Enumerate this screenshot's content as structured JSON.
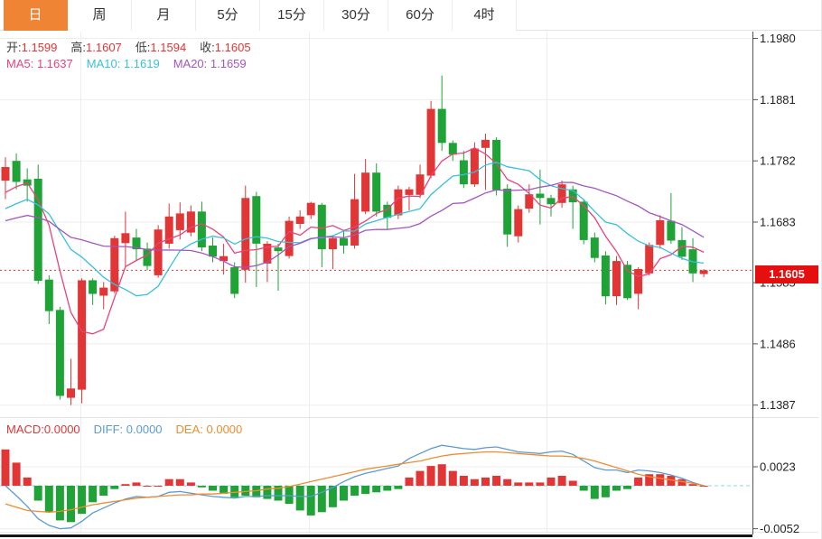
{
  "colors": {
    "up": "#e23535",
    "down": "#1fa337",
    "accent": "#ee8434",
    "ma5": "#e8437a",
    "ma10": "#38c0dc",
    "ma20": "#a455c0",
    "diff": "#5b9bd5",
    "dea": "#f08c2e",
    "price_tag_bg": "#e60f0f",
    "dotted_line": "#e23535",
    "zero_line": "#8fd6e8",
    "label_dark": "#3c3c3c",
    "value_red": "#e23535",
    "axis": "#555555",
    "grid": "#ededed"
  },
  "toolbar": {
    "tabs": [
      {
        "id": "day",
        "label": "日",
        "active": true
      },
      {
        "id": "week",
        "label": "周",
        "active": false
      },
      {
        "id": "month",
        "label": "月",
        "active": false
      },
      {
        "id": "5min",
        "label": "5分",
        "active": false
      },
      {
        "id": "15min",
        "label": "15分",
        "active": false
      },
      {
        "id": "30min",
        "label": "30分",
        "active": false
      },
      {
        "id": "60min",
        "label": "60分",
        "active": false
      },
      {
        "id": "4hour",
        "label": "4时",
        "active": false
      }
    ]
  },
  "main_legend": {
    "ohlc": [
      {
        "label": "开:",
        "value": "1.1599"
      },
      {
        "label": "高:",
        "value": "1.1607"
      },
      {
        "label": "低:",
        "value": "1.1594"
      },
      {
        "label": "收:",
        "value": "1.1605"
      }
    ],
    "ma": [
      {
        "label": "MA5: ",
        "value": "1.1637",
        "color": "#e8437a"
      },
      {
        "label": "MA10: ",
        "value": "1.1619",
        "color": "#38c0dc"
      },
      {
        "label": "MA20: ",
        "value": "1.1659",
        "color": "#a455c0"
      }
    ]
  },
  "macd_legend": {
    "items": [
      {
        "label": "MACD:",
        "value": "0.0000",
        "color": "#e23535"
      },
      {
        "label": "DIFF: ",
        "value": "0.0000",
        "color": "#5b9bd5"
      },
      {
        "label": "DEA: ",
        "value": "0.0000",
        "color": "#f08c2e"
      }
    ]
  },
  "price_axis": {
    "tick_labels": [
      "1.1980",
      "1.1881",
      "1.1782",
      "1.1683",
      "1.1585",
      "1.1486",
      "1.1387"
    ],
    "current_price": "1.1605"
  },
  "macd_axis": {
    "tick_labels": [
      "0.0023",
      "-0.0052"
    ]
  },
  "chart_data": [
    {
      "type": "candlestick",
      "period": "日",
      "ylim": [
        1.1377,
        1.1991
      ],
      "y_ticks": [
        1.198,
        1.1881,
        1.1782,
        1.1683,
        1.1585,
        1.1486,
        1.1387
      ],
      "current_price": 1.1605,
      "legend_values": {
        "ma5": "1.1637",
        "ma10": "1.1619",
        "ma20": "1.1659"
      },
      "ma_periods": [
        5,
        10,
        20
      ],
      "history_closes": [
        1.165,
        1.1655,
        1.166,
        1.1658,
        1.1662,
        1.1665,
        1.1668,
        1.167,
        1.1672,
        1.1675,
        1.167,
        1.1668,
        1.1672,
        1.1678,
        1.1685,
        1.169,
        1.17,
        1.1712,
        1.1725,
        1.1745
      ],
      "candles": [
        [
          1.175,
          1.1788,
          1.172,
          1.1772
        ],
        [
          1.1782,
          1.1794,
          1.1736,
          1.1748
        ],
        [
          1.1752,
          1.177,
          1.1716,
          1.1742
        ],
        [
          1.1753,
          1.1776,
          1.1583,
          1.1588
        ],
        [
          1.159,
          1.1597,
          1.1518,
          1.1539
        ],
        [
          1.1541,
          1.1546,
          1.1396,
          1.1402
        ],
        [
          1.1399,
          1.1462,
          1.1387,
          1.1414
        ],
        [
          1.1412,
          1.1592,
          1.139,
          1.1589
        ],
        [
          1.1589,
          1.1592,
          1.1549,
          1.1567
        ],
        [
          1.1564,
          1.1586,
          1.1542,
          1.1577
        ],
        [
          1.1571,
          1.1661,
          1.1568,
          1.1657
        ],
        [
          1.1649,
          1.17,
          1.161,
          1.1665
        ],
        [
          1.1658,
          1.1672,
          1.162,
          1.1639
        ],
        [
          1.164,
          1.165,
          1.1605,
          1.1612
        ],
        [
          1.1597,
          1.1678,
          1.1593,
          1.1671
        ],
        [
          1.1648,
          1.1713,
          1.164,
          1.1692
        ],
        [
          1.167,
          1.1715,
          1.1655,
          1.1697
        ],
        [
          1.1666,
          1.171,
          1.166,
          1.17
        ],
        [
          1.17,
          1.1716,
          1.1636,
          1.1642
        ],
        [
          1.1645,
          1.1658,
          1.1618,
          1.1627
        ],
        [
          1.162,
          1.1648,
          1.1598,
          1.1628
        ],
        [
          1.161,
          1.1618,
          1.156,
          1.1567
        ],
        [
          1.1606,
          1.1742,
          1.1585,
          1.1722
        ],
        [
          1.1725,
          1.1732,
          1.1578,
          1.1648
        ],
        [
          1.1616,
          1.1652,
          1.1586,
          1.1648
        ],
        [
          1.1642,
          1.1648,
          1.1572,
          1.1636
        ],
        [
          1.1628,
          1.1692,
          1.1624,
          1.1685
        ],
        [
          1.168,
          1.1702,
          1.1672,
          1.1692
        ],
        [
          1.1694,
          1.1716,
          1.1688,
          1.1714
        ],
        [
          1.1711,
          1.1714,
          1.161,
          1.1639
        ],
        [
          1.1639,
          1.1662,
          1.1607,
          1.1657
        ],
        [
          1.1657,
          1.167,
          1.1632,
          1.1645
        ],
        [
          1.1645,
          1.1761,
          1.164,
          1.172
        ],
        [
          1.17,
          1.1785,
          1.1696,
          1.1763
        ],
        [
          1.1763,
          1.1778,
          1.1692,
          1.17
        ],
        [
          1.1711,
          1.1716,
          1.1672,
          1.169
        ],
        [
          1.1694,
          1.1742,
          1.1688,
          1.1736
        ],
        [
          1.1727,
          1.174,
          1.1702,
          1.1736
        ],
        [
          1.1727,
          1.1776,
          1.1722,
          1.176
        ],
        [
          1.1758,
          1.1879,
          1.1754,
          1.1866
        ],
        [
          1.1866,
          1.192,
          1.1798,
          1.1811
        ],
        [
          1.1811,
          1.1815,
          1.1782,
          1.1792
        ],
        [
          1.1783,
          1.1798,
          1.1738,
          1.1744
        ],
        [
          1.1744,
          1.1812,
          1.174,
          1.1802
        ],
        [
          1.1803,
          1.1826,
          1.1735,
          1.1816
        ],
        [
          1.1816,
          1.182,
          1.1726,
          1.1735
        ],
        [
          1.1737,
          1.1744,
          1.1643,
          1.1663
        ],
        [
          1.166,
          1.171,
          1.165,
          1.1704
        ],
        [
          1.1705,
          1.1744,
          1.1698,
          1.1728
        ],
        [
          1.1729,
          1.1768,
          1.1679,
          1.1722
        ],
        [
          1.1722,
          1.1727,
          1.1692,
          1.1712
        ],
        [
          1.1714,
          1.175,
          1.1706,
          1.1744
        ],
        [
          1.1736,
          1.1742,
          1.1672,
          1.1715
        ],
        [
          1.1716,
          1.172,
          1.1647,
          1.1654
        ],
        [
          1.1658,
          1.1666,
          1.1618,
          1.1625
        ],
        [
          1.1629,
          1.1636,
          1.155,
          1.1563
        ],
        [
          1.1563,
          1.1628,
          1.1549,
          1.162
        ],
        [
          1.1614,
          1.162,
          1.1557,
          1.156
        ],
        [
          1.1567,
          1.161,
          1.1542,
          1.1607
        ],
        [
          1.16,
          1.165,
          1.1597,
          1.1646
        ],
        [
          1.1646,
          1.1694,
          1.164,
          1.1686
        ],
        [
          1.1685,
          1.173,
          1.1648,
          1.1653
        ],
        [
          1.1654,
          1.1675,
          1.1622,
          1.1627
        ],
        [
          1.1639,
          1.1657,
          1.1586,
          1.16
        ],
        [
          1.1599,
          1.1607,
          1.1594,
          1.1605
        ]
      ]
    },
    {
      "type": "bar",
      "name": "MACD",
      "ylim": [
        -0.0059,
        0.0082
      ],
      "y_ticks": [
        0.0023,
        -0.0052
      ],
      "histogram_rule": "2*(diff-dea)",
      "last_values": {
        "macd": "0.0000",
        "diff": "0.0000",
        "dea": "0.0000"
      },
      "diff": [
        0.0,
        -0.0012,
        -0.0025,
        -0.004,
        -0.0048,
        -0.0052,
        -0.0051,
        -0.0043,
        -0.0033,
        -0.0027,
        -0.0021,
        -0.0016,
        -0.0013,
        -0.0014,
        -0.0013,
        -0.0008,
        -0.0007,
        -0.0009,
        -0.0011,
        -0.0013,
        -0.0014,
        -0.0015,
        -0.0013,
        -0.0013,
        -0.0012,
        -0.0012,
        -0.0012,
        -0.0013,
        -0.0013,
        -0.0008,
        -0.0002,
        0.0005,
        0.0011,
        0.0015,
        0.0018,
        0.0021,
        0.0024,
        0.0033,
        0.0039,
        0.0045,
        0.0049,
        0.0047,
        0.0045,
        0.0044,
        0.0046,
        0.0047,
        0.0044,
        0.0041,
        0.004,
        0.0039,
        0.0041,
        0.0042,
        0.0038,
        0.003,
        0.0022,
        0.0019,
        0.0019,
        0.0016,
        0.0019,
        0.0018,
        0.0016,
        0.0013,
        0.0009,
        0.0004,
        0.0
      ],
      "dea": [
        -0.0022,
        -0.0026,
        -0.003,
        -0.0031,
        -0.0032,
        -0.0031,
        -0.0029,
        -0.0026,
        -0.0023,
        -0.0021,
        -0.0019,
        -0.0017,
        -0.0015,
        -0.0014,
        -0.0013,
        -0.0012,
        -0.0011,
        -0.0011,
        -0.001,
        -0.001,
        -0.0009,
        -0.0008,
        -0.0007,
        -0.0006,
        -0.0004,
        -0.0003,
        -0.0001,
        0.0002,
        0.0005,
        0.0008,
        0.0011,
        0.0014,
        0.0017,
        0.002,
        0.0022,
        0.0024,
        0.0026,
        0.0028,
        0.003,
        0.0033,
        0.0036,
        0.0038,
        0.0039,
        0.004,
        0.0041,
        0.0041,
        0.004,
        0.0039,
        0.0038,
        0.0037,
        0.0036,
        0.0036,
        0.0035,
        0.0033,
        0.003,
        0.0026,
        0.0022,
        0.0018,
        0.0014,
        0.0011,
        0.0009,
        0.0007,
        0.0005,
        0.0003,
        0.0
      ]
    }
  ]
}
